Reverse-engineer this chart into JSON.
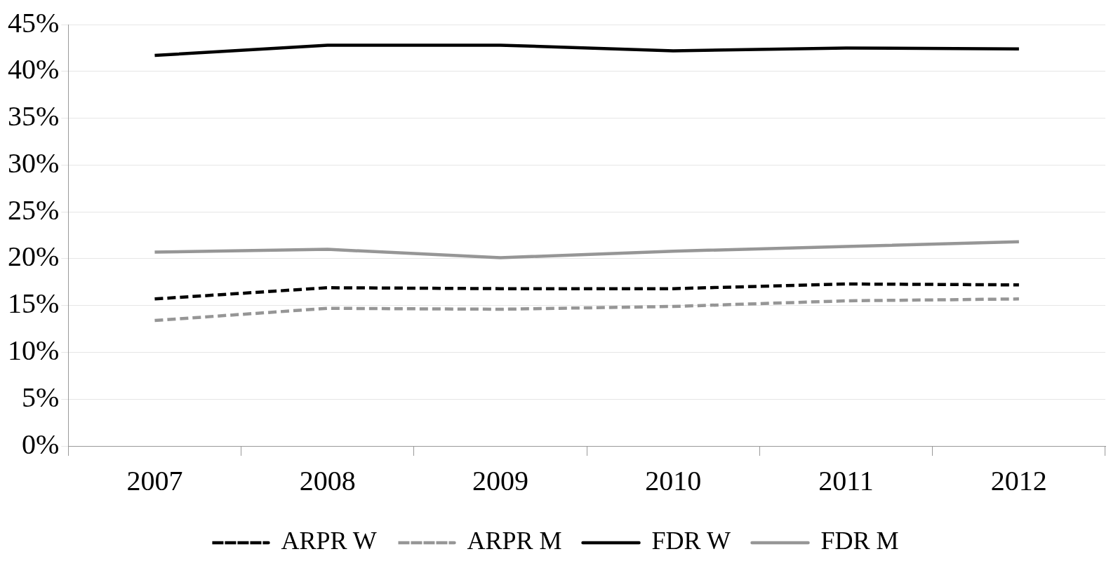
{
  "chart_data": {
    "type": "line",
    "categories": [
      "2007",
      "2008",
      "2009",
      "2010",
      "2011",
      "2012"
    ],
    "series": [
      {
        "name": "ARPR W",
        "color": "#000000",
        "line_style": "dashed",
        "values": [
          15.7,
          16.9,
          16.8,
          16.8,
          17.3,
          17.2
        ]
      },
      {
        "name": "ARPR M",
        "color": "#969696",
        "line_style": "dashed",
        "values": [
          13.4,
          14.7,
          14.6,
          14.9,
          15.5,
          15.7
        ]
      },
      {
        "name": "FDR W",
        "color": "#000000",
        "line_style": "solid",
        "values": [
          41.7,
          42.8,
          42.8,
          42.2,
          42.5,
          42.4
        ]
      },
      {
        "name": "FDR M",
        "color": "#969696",
        "line_style": "solid",
        "values": [
          20.7,
          21.0,
          20.1,
          20.8,
          21.3,
          21.8
        ]
      }
    ],
    "ylim": [
      0,
      45
    ],
    "yticks": [
      {
        "value": 0,
        "label": "0%"
      },
      {
        "value": 5,
        "label": "5%"
      },
      {
        "value": 10,
        "label": "10%"
      },
      {
        "value": 15,
        "label": "15%"
      },
      {
        "value": 20,
        "label": "20%"
      },
      {
        "value": 25,
        "label": "25%"
      },
      {
        "value": 30,
        "label": "30%"
      },
      {
        "value": 35,
        "label": "35%"
      },
      {
        "value": 40,
        "label": "40%"
      },
      {
        "value": 45,
        "label": "45%"
      }
    ],
    "grid": "y",
    "legend": "bottom",
    "marker": "none"
  }
}
